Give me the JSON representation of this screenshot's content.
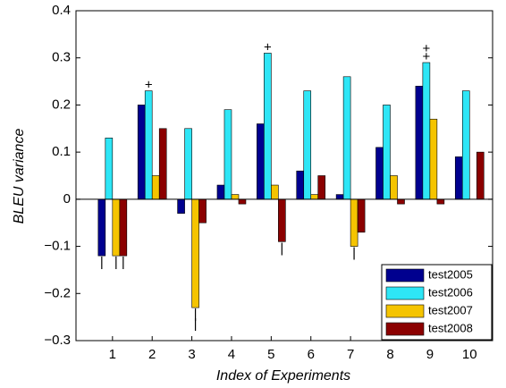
{
  "chart_data": {
    "type": "bar",
    "x_label": "Index of Experiments",
    "y_label": "BLEU variance",
    "categories": [
      "1",
      "2",
      "3",
      "4",
      "5",
      "6",
      "7",
      "8",
      "9",
      "10"
    ],
    "ylim": [
      -0.3,
      0.4
    ],
    "yticks": [
      {
        "value": -0.3,
        "label": "−0.3"
      },
      {
        "value": -0.2,
        "label": "−0.2"
      },
      {
        "value": -0.1,
        "label": "−0.1"
      },
      0,
      0.1,
      0.2,
      0.3,
      0.4
    ],
    "legend": "lower right",
    "series": [
      {
        "name": "test2005",
        "color": "#00008f",
        "values": [
          -0.12,
          0.2,
          -0.03,
          0.03,
          0.16,
          0.06,
          0.01,
          0.11,
          0.24,
          0.09
        ],
        "markers": [
          "|",
          null,
          null,
          null,
          null,
          null,
          null,
          null,
          null,
          null
        ]
      },
      {
        "name": "test2006",
        "color": "#2ee6f6",
        "values": [
          0.13,
          0.23,
          0.15,
          0.19,
          0.31,
          0.23,
          0.26,
          0.2,
          0.29,
          0.23
        ],
        "markers": [
          null,
          "+",
          null,
          null,
          "+",
          null,
          null,
          null,
          "++",
          null
        ]
      },
      {
        "name": "test2007",
        "color": "#f5c400",
        "values": [
          -0.12,
          0.05,
          -0.23,
          0.01,
          0.03,
          0.01,
          -0.1,
          0.05,
          0.17,
          0
        ],
        "markers": [
          "|",
          null,
          "||",
          null,
          null,
          null,
          "|",
          null,
          null,
          null
        ]
      },
      {
        "name": "test2008",
        "color": "#8b0000",
        "values": [
          -0.12,
          0.15,
          -0.05,
          -0.01,
          -0.09,
          0.05,
          -0.07,
          -0.01,
          -0.01,
          0.1
        ],
        "markers": [
          "|",
          null,
          null,
          null,
          "|",
          null,
          null,
          null,
          null,
          null
        ]
      }
    ]
  }
}
